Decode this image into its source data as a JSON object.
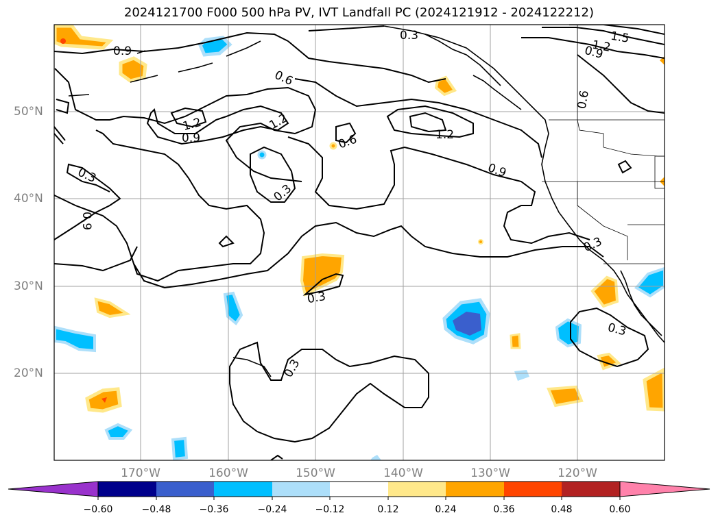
{
  "title": "2024121700 F000 500 hPa PV, IVT Landfall PC (2024121912 - 2024122212)",
  "lat_labels": [
    "50°N",
    "40°N",
    "30°N",
    "20°N"
  ],
  "lon_labels": [
    "170°W",
    "160°W",
    "150°W",
    "140°W",
    "130°W",
    "120°W"
  ],
  "pv_contour_labels": [
    "0.9",
    "0.3",
    "0.6",
    "1.5",
    "1.2",
    "0.9",
    "0.6",
    "1.2",
    "0.9",
    "1.2",
    "0.3",
    "0.9",
    "0.3",
    "0.6",
    "1.2",
    "0.9",
    "0.3",
    "0.3",
    "0.3",
    "0.3"
  ],
  "colorbar": {
    "ticks": [
      "−0.60",
      "−0.48",
      "−0.36",
      "−0.24",
      "−0.12",
      "0.12",
      "0.24",
      "0.36",
      "0.48",
      "0.60"
    ],
    "colors": [
      "#9932CC",
      "#00008B",
      "#3A5FCD",
      "#00BFFF",
      "#ADDFFA",
      "#FFFFFF",
      "#FFE88A",
      "#FFA500",
      "#FF4500",
      "#B22222",
      "#FF82AB"
    ]
  }
}
